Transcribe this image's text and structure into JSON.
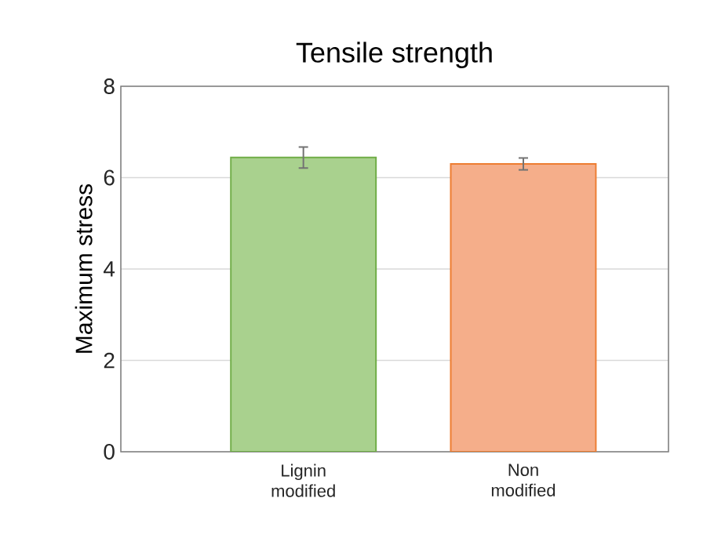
{
  "chart_data": {
    "type": "bar",
    "title": "Tensile strength",
    "ylabel": "Maximum stress",
    "categories": [
      "Lignin modified",
      "Non modified"
    ],
    "values": [
      6.44,
      6.3
    ],
    "errors": [
      0.23,
      0.13
    ],
    "colors": [
      "#a9d18e",
      "#f5ae8a"
    ],
    "ylim": [
      0,
      8
    ],
    "yticks": [
      0,
      2,
      4,
      6,
      8
    ],
    "grid": "y"
  }
}
